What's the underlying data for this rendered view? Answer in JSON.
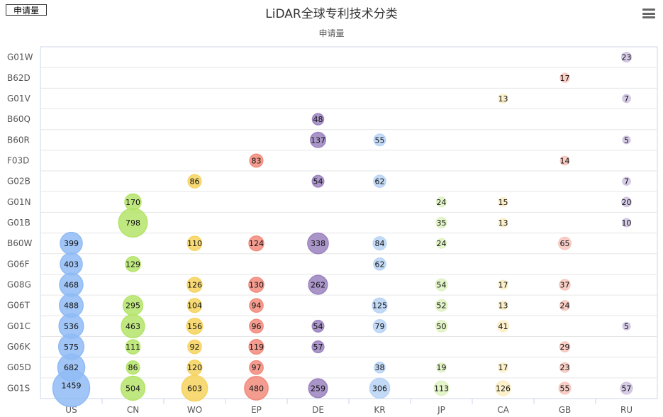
{
  "legend_label": "申请量",
  "menu_icon": "hamburger-menu-icon",
  "chart_data": {
    "type": "scatter",
    "title": "LiDAR全球专利技术分类",
    "subtitle": "申请量",
    "x_categories": [
      "US",
      "CN",
      "WO",
      "EP",
      "DE",
      "KR",
      "JP",
      "CA",
      "GB",
      "RU"
    ],
    "y_categories": [
      "G01W",
      "B62D",
      "G01V",
      "B60Q",
      "B60R",
      "F03D",
      "G02B",
      "G01N",
      "G01B",
      "B60W",
      "G06F",
      "G08G",
      "G06T",
      "G01C",
      "G06K",
      "G05D",
      "G01S"
    ],
    "series_name": "申请量",
    "column_colors": {
      "US": "#8fbbf5",
      "CN": "#b5e46a",
      "WO": "#f6d35e",
      "EP": "#f28b7c",
      "DE": "#9b83c0",
      "KR": "#b9d4f6",
      "JP": "#dff2c2",
      "CA": "#fbeec3",
      "GB": "#f7c6bd",
      "RU": "#cfc3e2"
    },
    "points": [
      {
        "x": "RU",
        "y": "G01W",
        "value": 23
      },
      {
        "x": "GB",
        "y": "B62D",
        "value": 17
      },
      {
        "x": "CA",
        "y": "G01V",
        "value": 13
      },
      {
        "x": "RU",
        "y": "G01V",
        "value": 7
      },
      {
        "x": "DE",
        "y": "B60Q",
        "value": 48
      },
      {
        "x": "DE",
        "y": "B60R",
        "value": 137
      },
      {
        "x": "KR",
        "y": "B60R",
        "value": 55
      },
      {
        "x": "RU",
        "y": "B60R",
        "value": 5
      },
      {
        "x": "EP",
        "y": "F03D",
        "value": 83
      },
      {
        "x": "GB",
        "y": "F03D",
        "value": 14
      },
      {
        "x": "WO",
        "y": "G02B",
        "value": 86
      },
      {
        "x": "DE",
        "y": "G02B",
        "value": 54
      },
      {
        "x": "KR",
        "y": "G02B",
        "value": 62
      },
      {
        "x": "RU",
        "y": "G02B",
        "value": 7
      },
      {
        "x": "CN",
        "y": "G01N",
        "value": 170
      },
      {
        "x": "JP",
        "y": "G01N",
        "value": 24
      },
      {
        "x": "CA",
        "y": "G01N",
        "value": 15
      },
      {
        "x": "RU",
        "y": "G01N",
        "value": 20
      },
      {
        "x": "CN",
        "y": "G01B",
        "value": 798
      },
      {
        "x": "JP",
        "y": "G01B",
        "value": 35
      },
      {
        "x": "CA",
        "y": "G01B",
        "value": 13
      },
      {
        "x": "RU",
        "y": "G01B",
        "value": 10
      },
      {
        "x": "US",
        "y": "B60W",
        "value": 399
      },
      {
        "x": "WO",
        "y": "B60W",
        "value": 110
      },
      {
        "x": "EP",
        "y": "B60W",
        "value": 124
      },
      {
        "x": "DE",
        "y": "B60W",
        "value": 338
      },
      {
        "x": "KR",
        "y": "B60W",
        "value": 84
      },
      {
        "x": "JP",
        "y": "B60W",
        "value": 24
      },
      {
        "x": "GB",
        "y": "B60W",
        "value": 65
      },
      {
        "x": "US",
        "y": "G06F",
        "value": 403
      },
      {
        "x": "CN",
        "y": "G06F",
        "value": 129
      },
      {
        "x": "KR",
        "y": "G06F",
        "value": 62
      },
      {
        "x": "US",
        "y": "G08G",
        "value": 468
      },
      {
        "x": "WO",
        "y": "G08G",
        "value": 126
      },
      {
        "x": "EP",
        "y": "G08G",
        "value": 130
      },
      {
        "x": "DE",
        "y": "G08G",
        "value": 262
      },
      {
        "x": "JP",
        "y": "G08G",
        "value": 54
      },
      {
        "x": "CA",
        "y": "G08G",
        "value": 17
      },
      {
        "x": "GB",
        "y": "G08G",
        "value": 37
      },
      {
        "x": "US",
        "y": "G06T",
        "value": 488
      },
      {
        "x": "CN",
        "y": "G06T",
        "value": 295
      },
      {
        "x": "WO",
        "y": "G06T",
        "value": 104
      },
      {
        "x": "EP",
        "y": "G06T",
        "value": 94
      },
      {
        "x": "KR",
        "y": "G06T",
        "value": 125
      },
      {
        "x": "JP",
        "y": "G06T",
        "value": 52
      },
      {
        "x": "CA",
        "y": "G06T",
        "value": 13
      },
      {
        "x": "GB",
        "y": "G06T",
        "value": 24
      },
      {
        "x": "US",
        "y": "G01C",
        "value": 536
      },
      {
        "x": "CN",
        "y": "G01C",
        "value": 463
      },
      {
        "x": "WO",
        "y": "G01C",
        "value": 156
      },
      {
        "x": "EP",
        "y": "G01C",
        "value": 96
      },
      {
        "x": "DE",
        "y": "G01C",
        "value": 54
      },
      {
        "x": "KR",
        "y": "G01C",
        "value": 79
      },
      {
        "x": "JP",
        "y": "G01C",
        "value": 50
      },
      {
        "x": "CA",
        "y": "G01C",
        "value": 41
      },
      {
        "x": "RU",
        "y": "G01C",
        "value": 5
      },
      {
        "x": "US",
        "y": "G06K",
        "value": 575
      },
      {
        "x": "CN",
        "y": "G06K",
        "value": 111
      },
      {
        "x": "WO",
        "y": "G06K",
        "value": 92
      },
      {
        "x": "EP",
        "y": "G06K",
        "value": 119
      },
      {
        "x": "DE",
        "y": "G06K",
        "value": 57
      },
      {
        "x": "GB",
        "y": "G06K",
        "value": 29
      },
      {
        "x": "US",
        "y": "G05D",
        "value": 682
      },
      {
        "x": "CN",
        "y": "G05D",
        "value": 86
      },
      {
        "x": "WO",
        "y": "G05D",
        "value": 120
      },
      {
        "x": "EP",
        "y": "G05D",
        "value": 97
      },
      {
        "x": "KR",
        "y": "G05D",
        "value": 38
      },
      {
        "x": "JP",
        "y": "G05D",
        "value": 19
      },
      {
        "x": "CA",
        "y": "G05D",
        "value": 17
      },
      {
        "x": "GB",
        "y": "G05D",
        "value": 23
      },
      {
        "x": "US",
        "y": "G01S",
        "value": 1459
      },
      {
        "x": "CN",
        "y": "G01S",
        "value": 504
      },
      {
        "x": "WO",
        "y": "G01S",
        "value": 603
      },
      {
        "x": "EP",
        "y": "G01S",
        "value": 480
      },
      {
        "x": "DE",
        "y": "G01S",
        "value": 259
      },
      {
        "x": "KR",
        "y": "G01S",
        "value": 306
      },
      {
        "x": "JP",
        "y": "G01S",
        "value": 113
      },
      {
        "x": "CA",
        "y": "G01S",
        "value": 126
      },
      {
        "x": "GB",
        "y": "G01S",
        "value": 55
      },
      {
        "x": "RU",
        "y": "G01S",
        "value": 57
      }
    ]
  }
}
